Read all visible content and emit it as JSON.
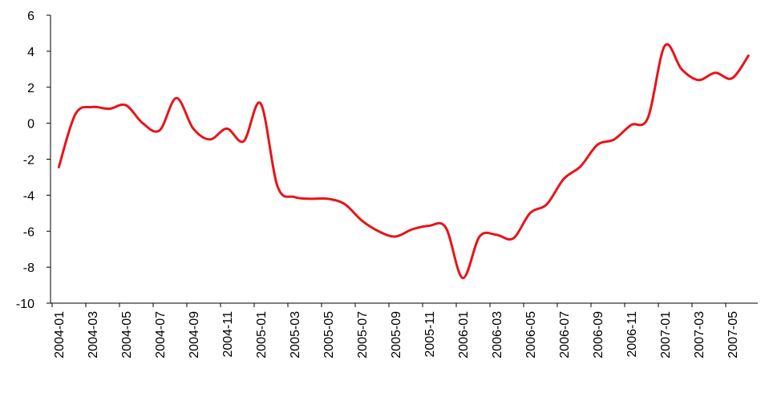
{
  "chart_data": {
    "type": "line",
    "categories": [
      "2004-01",
      null,
      "2004-03",
      null,
      "2004-05",
      null,
      "2004-07",
      null,
      "2004-09",
      null,
      "2004-11",
      null,
      "2005-01",
      null,
      "2005-03",
      null,
      "2005-05",
      null,
      "2005-07",
      null,
      "2005-09",
      null,
      "2005-11",
      null,
      "2006-01",
      null,
      "2006-03",
      null,
      "2006-05",
      null,
      "2006-07",
      null,
      "2006-09",
      null,
      "2006-11",
      null,
      "2007-01",
      null,
      "2007-03",
      null,
      "2007-05",
      null
    ],
    "series": [
      {
        "color": "#e8141a",
        "values": [
          -2.5,
          0.5,
          0.9,
          0.8,
          1.0,
          0.0,
          -0.4,
          1.4,
          -0.3,
          -0.9,
          -0.3,
          -1.0,
          1.1,
          -3.5,
          -4.1,
          -4.2,
          -4.2,
          -4.5,
          -5.4,
          -6.0,
          -6.3,
          -5.9,
          -5.7,
          -5.8,
          -8.6,
          -6.3,
          -6.2,
          -6.4,
          -5.0,
          -4.5,
          -3.1,
          -2.4,
          -1.2,
          -0.9,
          -0.1,
          0.3,
          4.3,
          3.0,
          2.4,
          2.8,
          2.5,
          3.8
        ]
      }
    ],
    "ylim": [
      -10,
      6
    ],
    "yticks": [
      -10,
      -8,
      -6,
      -4,
      -2,
      0,
      2,
      4,
      6
    ]
  }
}
